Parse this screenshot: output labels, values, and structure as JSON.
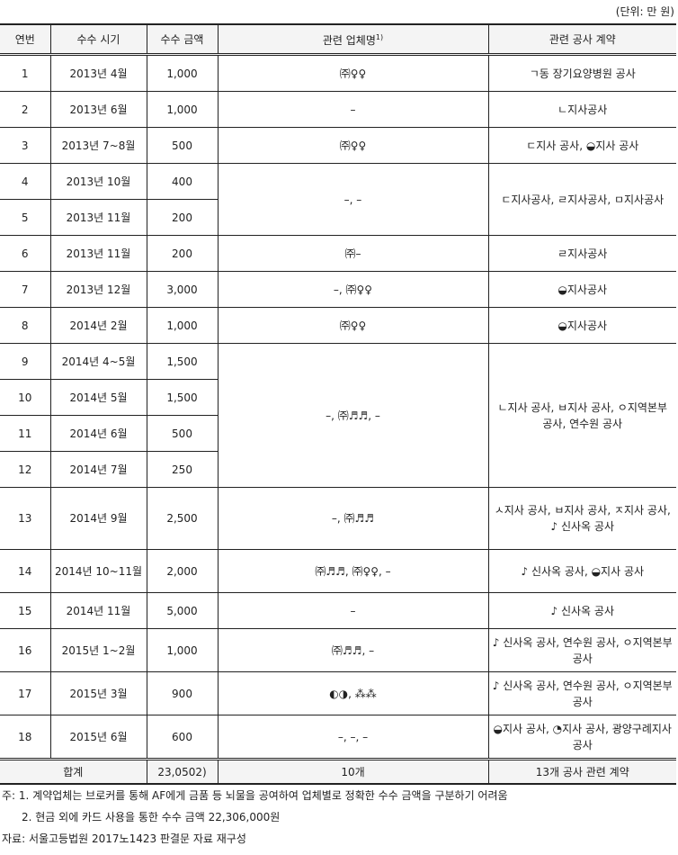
{
  "unit": "(단위: 만 원)",
  "headers": {
    "no": "연번",
    "date": "수수 시기",
    "amount": "수수 금액",
    "company": "관련 업체명",
    "company_sup": "1)",
    "contract": "관련 공사 계약"
  },
  "rows": [
    {
      "no": "1",
      "date": "2013년 4월",
      "amount": "1,000",
      "company": "㈜♀♀",
      "contract": "ㄱ동 장기요양병원 공사"
    },
    {
      "no": "2",
      "date": "2013년 6월",
      "amount": "1,000",
      "company": "–",
      "contract": "ㄴ지사공사"
    },
    {
      "no": "3",
      "date": "2013년 7~8월",
      "amount": "500",
      "company": "㈜♀♀",
      "contract": "ㄷ지사 공사, ◒지사 공사"
    },
    {
      "no": "4",
      "date": "2013년 10월",
      "amount": "400",
      "company": "–, –",
      "contract": "ㄷ지사공사, ㄹ지사공사, ㅁ지사공사"
    },
    {
      "no": "5",
      "date": "2013년 11월",
      "amount": "200"
    },
    {
      "no": "6",
      "date": "2013년 11월",
      "amount": "200",
      "company": "㈜–",
      "contract": "ㄹ지사공사"
    },
    {
      "no": "7",
      "date": "2013년 12월",
      "amount": "3,000",
      "company": "–, ㈜♀♀",
      "contract": "◒지사공사"
    },
    {
      "no": "8",
      "date": "2014년 2월",
      "amount": "1,000",
      "company": "㈜♀♀",
      "contract": "◒지사공사"
    },
    {
      "no": "9",
      "date": "2014년 4~5월",
      "amount": "1,500",
      "company": "–, ㈜♬♬, –",
      "contract": "ㄴ지사 공사, ㅂ지사 공사, ㅇ지역본부 공사, 연수원 공사"
    },
    {
      "no": "10",
      "date": "2014년 5월",
      "amount": "1,500"
    },
    {
      "no": "11",
      "date": "2014년 6월",
      "amount": "500"
    },
    {
      "no": "12",
      "date": "2014년 7월",
      "amount": "250"
    },
    {
      "no": "13",
      "date": "2014년 9월",
      "amount": "2,500",
      "company": "–, ㈜♬♬",
      "contract": "ㅅ지사 공사, ㅂ지사 공사, ㅈ지사 공사, ♪ 신사옥 공사"
    },
    {
      "no": "14",
      "date": "2014년 10~11월",
      "amount": "2,000",
      "company": "㈜♬♬, ㈜♀♀, –",
      "contract": "♪ 신사옥 공사, ◒지사 공사"
    },
    {
      "no": "15",
      "date": "2014년 11월",
      "amount": "5,000",
      "company": "–",
      "contract": "♪ 신사옥 공사"
    },
    {
      "no": "16",
      "date": "2015년 1~2월",
      "amount": "1,000",
      "company": "㈜♬♬, –",
      "contract": "♪ 신사옥 공사, 연수원 공사, ㅇ지역본부 공사"
    },
    {
      "no": "17",
      "date": "2015년 3월",
      "amount": "900",
      "company": "◐◑, ⁂⁂",
      "contract": "♪ 신사옥 공사, 연수원 공사, ㅇ지역본부 공사"
    },
    {
      "no": "18",
      "date": "2015년 6월",
      "amount": "600",
      "company": "–, –, –",
      "contract": "◒지사 공사, ◔지사 공사, 광양구례지사 공사"
    }
  ],
  "total": {
    "label": "합계",
    "amount": "23,0502)",
    "company": "10개",
    "contract": "13개 공사 관련 계약"
  },
  "notes": {
    "n1": "주: 1. 계약업체는 브로커를 통해 AF에게 금품 등 뇌물을 공여하여 업체별로 정확한 수수 금액을 구분하기 어려움",
    "n2": "2. 현금 외에 카드 사용을 통한 수수 금액 22,306,000원",
    "source": "자료: 서울고등법원 2017노1423 판결문 자료 재구성"
  }
}
